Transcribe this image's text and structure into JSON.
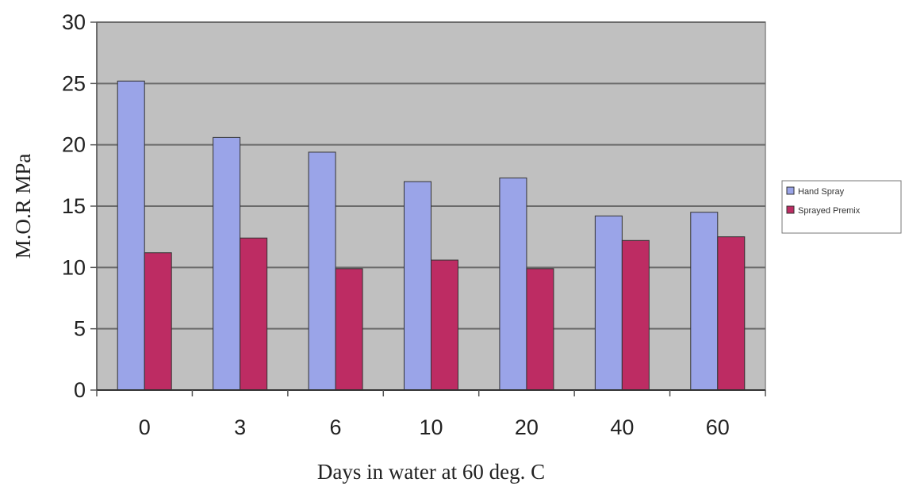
{
  "chart_data": {
    "type": "bar",
    "title": "",
    "xlabel": "Days in water at 60 deg. C",
    "ylabel": "M.O.R MPa",
    "categories": [
      "0",
      "3",
      "6",
      "10",
      "20",
      "40",
      "60"
    ],
    "yticks": [
      "0",
      "5",
      "10",
      "15",
      "20",
      "25",
      "30"
    ],
    "ylim": [
      0,
      30
    ],
    "grid": true,
    "legend_position": "right",
    "series": [
      {
        "name": "Hand Spray",
        "values": [
          25.2,
          20.6,
          19.4,
          17.0,
          17.3,
          14.2,
          14.5
        ],
        "color": "#9aa4e8"
      },
      {
        "name": "Sprayed Premix",
        "values": [
          11.2,
          12.4,
          9.9,
          10.6,
          9.9,
          12.2,
          12.5
        ],
        "color": "#bd2c63"
      }
    ],
    "plot_background": "#c0c0c0",
    "gridline_color": "#6a6a6a"
  }
}
